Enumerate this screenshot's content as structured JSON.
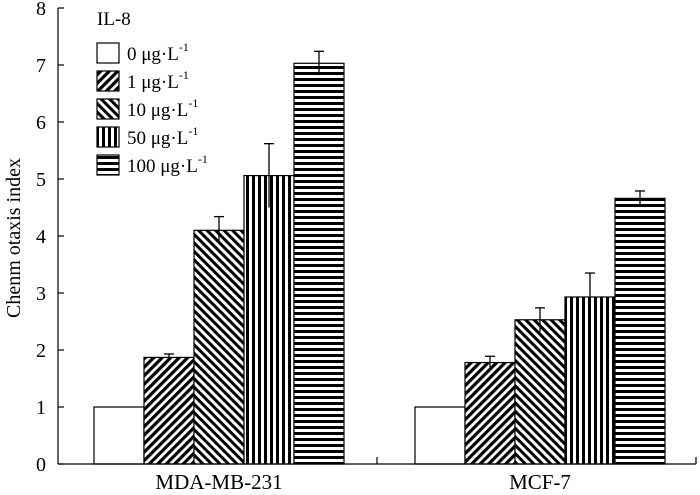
{
  "chart_data": {
    "type": "bar",
    "title": "",
    "xlabel": "",
    "ylabel": "Chenm otaxis index",
    "ylim": [
      0,
      8
    ],
    "yticks": [
      "0",
      "1",
      "2",
      "3",
      "4",
      "5",
      "6",
      "7",
      "8"
    ],
    "categories": [
      "MDA-MB-231",
      "MCF-7"
    ],
    "legend": {
      "title": "IL-8",
      "position": "top-left"
    },
    "series": [
      {
        "name": "0 μg·L",
        "unit_sup": "-1",
        "pattern": "empty",
        "values": [
          1.0,
          1.0
        ],
        "errors": [
          0,
          0
        ]
      },
      {
        "name": "1 μg·L",
        "unit_sup": "-1",
        "pattern": "diag-down",
        "values": [
          1.87,
          1.78
        ],
        "errors": [
          0.06,
          0.11
        ]
      },
      {
        "name": "10 μg·L",
        "unit_sup": "-1",
        "pattern": "diag-up",
        "values": [
          4.1,
          2.53
        ],
        "errors": [
          0.24,
          0.21
        ]
      },
      {
        "name": "50 μg·L",
        "unit_sup": "-1",
        "pattern": "vertical",
        "values": [
          5.06,
          2.93
        ],
        "errors": [
          0.56,
          0.42
        ]
      },
      {
        "name": "100 μg·L",
        "unit_sup": "-1",
        "pattern": "horizontal",
        "values": [
          7.03,
          4.66
        ],
        "errors": [
          0.21,
          0.13
        ]
      }
    ],
    "grid": false
  }
}
